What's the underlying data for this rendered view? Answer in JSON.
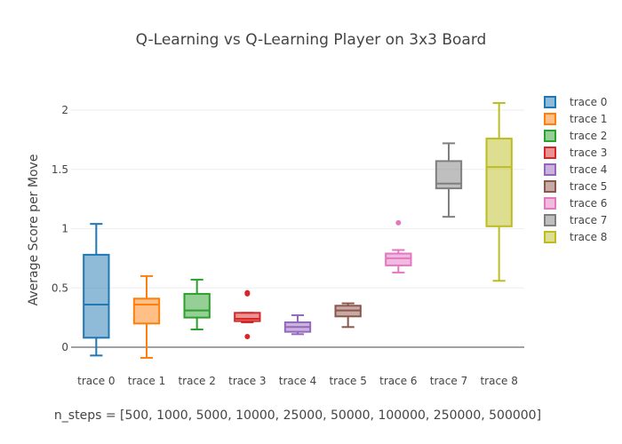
{
  "chart_data": {
    "type": "box",
    "title": "Q-Learning vs Q-Learning Player on 3x3 Board",
    "ylabel": "Average Score per Move",
    "xlabel": "n_steps = [500, 1000, 5000, 10000, 25000, 50000, 100000, 250000, 500000]",
    "ylim": [
      -0.2,
      2.2
    ],
    "yticks": [
      0,
      0.5,
      1,
      1.5,
      2
    ],
    "ytick_labels": [
      "0",
      "0.5",
      "1",
      "1.5",
      "2"
    ],
    "grid": true,
    "legend_position": "right",
    "series": [
      {
        "name": "trace 0",
        "color": "#1f77b4",
        "min": -0.07,
        "q1": 0.08,
        "median": 0.36,
        "q3": 0.78,
        "max": 1.04,
        "outliers": []
      },
      {
        "name": "trace 1",
        "color": "#ff7f0e",
        "min": -0.09,
        "q1": 0.2,
        "median": 0.36,
        "q3": 0.41,
        "max": 0.6,
        "outliers": []
      },
      {
        "name": "trace 2",
        "color": "#2ca02c",
        "min": 0.15,
        "q1": 0.25,
        "median": 0.31,
        "q3": 0.45,
        "max": 0.57,
        "outliers": []
      },
      {
        "name": "trace 3",
        "color": "#d62728",
        "min": 0.21,
        "q1": 0.22,
        "median": 0.24,
        "q3": 0.29,
        "max": 0.29,
        "outliers": [
          0.45,
          0.46,
          0.09
        ]
      },
      {
        "name": "trace 4",
        "color": "#9467bd",
        "min": 0.11,
        "q1": 0.13,
        "median": 0.17,
        "q3": 0.21,
        "max": 0.27,
        "outliers": []
      },
      {
        "name": "trace 5",
        "color": "#8c564b",
        "min": 0.17,
        "q1": 0.26,
        "median": 0.31,
        "q3": 0.35,
        "max": 0.37,
        "outliers": []
      },
      {
        "name": "trace 6",
        "color": "#e377c2",
        "min": 0.63,
        "q1": 0.69,
        "median": 0.75,
        "q3": 0.79,
        "max": 0.82,
        "outliers": [
          1.05
        ]
      },
      {
        "name": "trace 7",
        "color": "#7f7f7f",
        "min": 1.1,
        "q1": 1.34,
        "median": 1.38,
        "q3": 1.57,
        "max": 1.72,
        "outliers": []
      },
      {
        "name": "trace 8",
        "color": "#bcbd22",
        "min": 0.56,
        "q1": 1.02,
        "median": 1.52,
        "q3": 1.76,
        "max": 2.06,
        "outliers": []
      }
    ]
  }
}
